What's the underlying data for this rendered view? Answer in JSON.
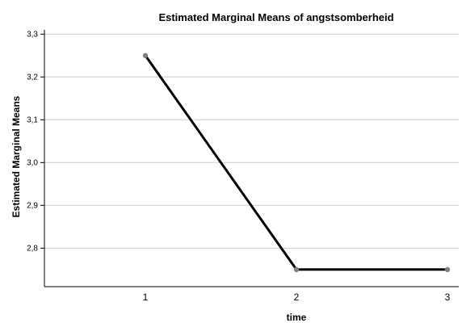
{
  "chart_data": {
    "type": "line",
    "title": "Estimated Marginal Means of angstsomberheid",
    "xlabel": "time",
    "ylabel": "Estimated Marginal Means",
    "categories": [
      "1",
      "2",
      "3"
    ],
    "series": [
      {
        "values": [
          3.25,
          2.75,
          2.75
        ]
      }
    ],
    "ylim": [
      2.71,
      3.31
    ],
    "yticks": [
      2.8,
      2.9,
      3.0,
      3.1,
      3.2,
      3.3
    ],
    "ytick_labels": [
      "2,8",
      "2,9",
      "3,0",
      "3,1",
      "3,2",
      "3,3"
    ],
    "grid": "horizontal",
    "line_color": "#000000",
    "marker_color": "#808080",
    "grid_color": "#cccccc"
  }
}
